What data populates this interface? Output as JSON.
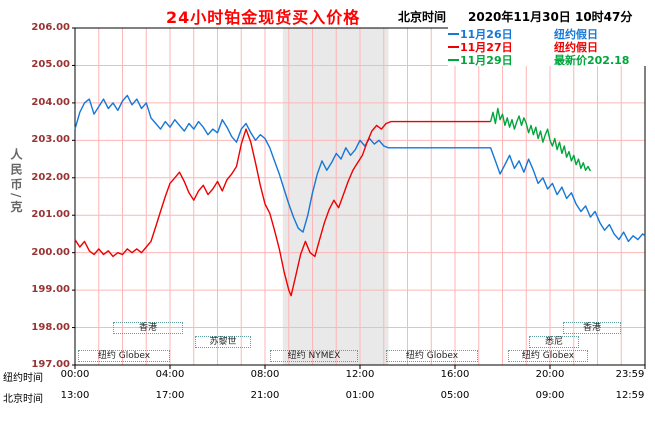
{
  "header": {
    "clock_label": "北京时间",
    "datetime": "2020年11月30日 10时47分"
  },
  "chart_data": {
    "type": "line",
    "title": "24小时铂金现货买入价格",
    "ylabel": "人民币/克",
    "ylim": [
      197,
      206
    ],
    "y_tick_labels": [
      "206.00",
      "205.00",
      "204.00",
      "203.00",
      "202.00",
      "201.00",
      "200.00",
      "199.00",
      "198.00",
      "197.00"
    ],
    "x_range": [
      0,
      24
    ],
    "x_ticks": [
      0,
      4,
      8,
      12,
      16,
      20,
      24
    ],
    "x_axis": {
      "ny_label": "纽约时间",
      "ny_times": [
        "00:00",
        "04:00",
        "08:00",
        "12:00",
        "16:00",
        "20:00",
        "23:59"
      ],
      "bj_label": "北京时间",
      "bj_times": [
        "13:00",
        "17:00",
        "21:00",
        "01:00",
        "05:00",
        "09:00",
        "12:59"
      ]
    },
    "grid": "on",
    "grid_color": "#ffb6b6",
    "band": {
      "x0": 8.75,
      "x1": 13.2,
      "color": "#e9e9e9"
    },
    "legend_position": "top-right",
    "legend": [
      {
        "date": "11月26日",
        "status": "纽约假日"
      },
      {
        "date": "11月27日",
        "status": "纽约假日"
      },
      {
        "date": "11月29日",
        "status": "最新价202.18"
      }
    ],
    "latest_price": 202.18,
    "sessions": [
      "香港",
      "香港",
      "苏黎世",
      "悉尼",
      "纽约 Globex",
      "纽约 NYMEX",
      "纽约 Globex",
      "纽约 Globex"
    ],
    "series": [
      {
        "name": "11月26日",
        "color": "#1577d8",
        "points": [
          [
            0,
            203.3
          ],
          [
            0.2,
            203.75
          ],
          [
            0.4,
            204.0
          ],
          [
            0.6,
            204.1
          ],
          [
            0.8,
            203.7
          ],
          [
            1.0,
            203.9
          ],
          [
            1.2,
            204.1
          ],
          [
            1.4,
            203.85
          ],
          [
            1.6,
            204.0
          ],
          [
            1.8,
            203.8
          ],
          [
            2.0,
            204.05
          ],
          [
            2.2,
            204.2
          ],
          [
            2.4,
            203.95
          ],
          [
            2.6,
            204.1
          ],
          [
            2.8,
            203.85
          ],
          [
            3.0,
            204.0
          ],
          [
            3.2,
            203.6
          ],
          [
            3.4,
            203.45
          ],
          [
            3.6,
            203.3
          ],
          [
            3.8,
            203.5
          ],
          [
            4.0,
            203.35
          ],
          [
            4.2,
            203.55
          ],
          [
            4.4,
            203.4
          ],
          [
            4.6,
            203.25
          ],
          [
            4.8,
            203.45
          ],
          [
            5.0,
            203.3
          ],
          [
            5.2,
            203.5
          ],
          [
            5.4,
            203.35
          ],
          [
            5.6,
            203.15
          ],
          [
            5.8,
            203.3
          ],
          [
            6.0,
            203.2
          ],
          [
            6.2,
            203.55
          ],
          [
            6.4,
            203.35
          ],
          [
            6.6,
            203.1
          ],
          [
            6.8,
            202.95
          ],
          [
            7.0,
            203.3
          ],
          [
            7.2,
            203.45
          ],
          [
            7.4,
            203.2
          ],
          [
            7.6,
            203.0
          ],
          [
            7.8,
            203.15
          ],
          [
            8.0,
            203.05
          ],
          [
            8.2,
            202.8
          ],
          [
            8.4,
            202.45
          ],
          [
            8.6,
            202.1
          ],
          [
            8.8,
            201.7
          ],
          [
            9.0,
            201.3
          ],
          [
            9.2,
            200.95
          ],
          [
            9.4,
            200.65
          ],
          [
            9.6,
            200.55
          ],
          [
            9.8,
            201.0
          ],
          [
            10.0,
            201.6
          ],
          [
            10.2,
            202.1
          ],
          [
            10.4,
            202.45
          ],
          [
            10.6,
            202.2
          ],
          [
            10.8,
            202.4
          ],
          [
            11.0,
            202.65
          ],
          [
            11.2,
            202.5
          ],
          [
            11.4,
            202.8
          ],
          [
            11.6,
            202.6
          ],
          [
            11.8,
            202.75
          ],
          [
            12.0,
            203.0
          ],
          [
            12.2,
            202.85
          ],
          [
            12.4,
            203.05
          ],
          [
            12.6,
            202.9
          ],
          [
            12.8,
            203.0
          ],
          [
            13.0,
            202.85
          ],
          [
            13.2,
            202.8
          ],
          [
            17.5,
            202.8
          ],
          [
            17.7,
            202.45
          ],
          [
            17.9,
            202.1
          ],
          [
            18.1,
            202.35
          ],
          [
            18.3,
            202.6
          ],
          [
            18.5,
            202.25
          ],
          [
            18.7,
            202.45
          ],
          [
            18.9,
            202.15
          ],
          [
            19.1,
            202.5
          ],
          [
            19.3,
            202.2
          ],
          [
            19.5,
            201.85
          ],
          [
            19.7,
            202.0
          ],
          [
            19.9,
            201.7
          ],
          [
            20.1,
            201.85
          ],
          [
            20.3,
            201.55
          ],
          [
            20.5,
            201.75
          ],
          [
            20.7,
            201.45
          ],
          [
            20.9,
            201.6
          ],
          [
            21.1,
            201.3
          ],
          [
            21.3,
            201.1
          ],
          [
            21.5,
            201.25
          ],
          [
            21.7,
            200.95
          ],
          [
            21.9,
            201.1
          ],
          [
            22.1,
            200.8
          ],
          [
            22.3,
            200.6
          ],
          [
            22.5,
            200.75
          ],
          [
            22.7,
            200.5
          ],
          [
            22.9,
            200.35
          ],
          [
            23.1,
            200.55
          ],
          [
            23.3,
            200.3
          ],
          [
            23.5,
            200.45
          ],
          [
            23.7,
            200.35
          ],
          [
            23.9,
            200.5
          ],
          [
            24,
            200.45
          ]
        ]
      },
      {
        "name": "11月27日",
        "color": "#ee0000",
        "points": [
          [
            0,
            200.35
          ],
          [
            0.2,
            200.15
          ],
          [
            0.4,
            200.3
          ],
          [
            0.6,
            200.05
          ],
          [
            0.8,
            199.95
          ],
          [
            1.0,
            200.1
          ],
          [
            1.2,
            199.95
          ],
          [
            1.4,
            200.05
          ],
          [
            1.6,
            199.9
          ],
          [
            1.8,
            200.0
          ],
          [
            2.0,
            199.95
          ],
          [
            2.2,
            200.1
          ],
          [
            2.4,
            200.0
          ],
          [
            2.6,
            200.1
          ],
          [
            2.8,
            200.0
          ],
          [
            3.0,
            200.15
          ],
          [
            3.2,
            200.3
          ],
          [
            3.4,
            200.7
          ],
          [
            3.6,
            201.1
          ],
          [
            3.8,
            201.5
          ],
          [
            4.0,
            201.85
          ],
          [
            4.2,
            202.0
          ],
          [
            4.4,
            202.15
          ],
          [
            4.6,
            201.9
          ],
          [
            4.8,
            201.6
          ],
          [
            5.0,
            201.4
          ],
          [
            5.2,
            201.65
          ],
          [
            5.4,
            201.8
          ],
          [
            5.6,
            201.55
          ],
          [
            5.8,
            201.7
          ],
          [
            6.0,
            201.9
          ],
          [
            6.2,
            201.65
          ],
          [
            6.4,
            201.95
          ],
          [
            6.6,
            202.1
          ],
          [
            6.8,
            202.3
          ],
          [
            7.0,
            202.9
          ],
          [
            7.2,
            203.3
          ],
          [
            7.4,
            202.95
          ],
          [
            7.6,
            202.4
          ],
          [
            7.8,
            201.8
          ],
          [
            8.0,
            201.3
          ],
          [
            8.2,
            201.05
          ],
          [
            8.4,
            200.6
          ],
          [
            8.6,
            200.1
          ],
          [
            8.8,
            199.5
          ],
          [
            9.0,
            199.0
          ],
          [
            9.1,
            198.85
          ],
          [
            9.3,
            199.4
          ],
          [
            9.5,
            199.95
          ],
          [
            9.7,
            200.3
          ],
          [
            9.9,
            200.0
          ],
          [
            10.1,
            199.9
          ],
          [
            10.3,
            200.35
          ],
          [
            10.5,
            200.8
          ],
          [
            10.7,
            201.15
          ],
          [
            10.9,
            201.4
          ],
          [
            11.1,
            201.2
          ],
          [
            11.3,
            201.55
          ],
          [
            11.5,
            201.9
          ],
          [
            11.7,
            202.2
          ],
          [
            11.9,
            202.4
          ],
          [
            12.1,
            202.6
          ],
          [
            12.3,
            202.95
          ],
          [
            12.5,
            203.25
          ],
          [
            12.7,
            203.4
          ],
          [
            12.9,
            203.3
          ],
          [
            13.1,
            203.45
          ],
          [
            13.3,
            203.5
          ],
          [
            17.5,
            203.5
          ]
        ]
      },
      {
        "name": "11月29日",
        "color": "#00a53c",
        "points": [
          [
            17.5,
            203.5
          ],
          [
            17.6,
            203.75
          ],
          [
            17.7,
            203.45
          ],
          [
            17.8,
            203.85
          ],
          [
            17.9,
            203.55
          ],
          [
            18.0,
            203.7
          ],
          [
            18.1,
            203.4
          ],
          [
            18.2,
            203.6
          ],
          [
            18.3,
            203.35
          ],
          [
            18.4,
            203.55
          ],
          [
            18.5,
            203.3
          ],
          [
            18.6,
            203.5
          ],
          [
            18.7,
            203.65
          ],
          [
            18.8,
            203.4
          ],
          [
            18.9,
            203.6
          ],
          [
            19.0,
            203.45
          ],
          [
            19.1,
            203.2
          ],
          [
            19.2,
            203.4
          ],
          [
            19.3,
            203.15
          ],
          [
            19.4,
            203.35
          ],
          [
            19.5,
            203.05
          ],
          [
            19.6,
            203.25
          ],
          [
            19.7,
            202.95
          ],
          [
            19.8,
            203.15
          ],
          [
            19.9,
            203.3
          ],
          [
            20.0,
            203.0
          ],
          [
            20.1,
            202.85
          ],
          [
            20.2,
            203.05
          ],
          [
            20.3,
            202.75
          ],
          [
            20.4,
            202.95
          ],
          [
            20.5,
            202.65
          ],
          [
            20.6,
            202.85
          ],
          [
            20.7,
            202.55
          ],
          [
            20.8,
            202.7
          ],
          [
            20.9,
            202.45
          ],
          [
            21.0,
            202.6
          ],
          [
            21.1,
            202.35
          ],
          [
            21.2,
            202.5
          ],
          [
            21.3,
            202.25
          ],
          [
            21.4,
            202.4
          ],
          [
            21.5,
            202.2
          ],
          [
            21.6,
            202.3
          ],
          [
            21.7,
            202.18
          ]
        ]
      }
    ]
  }
}
